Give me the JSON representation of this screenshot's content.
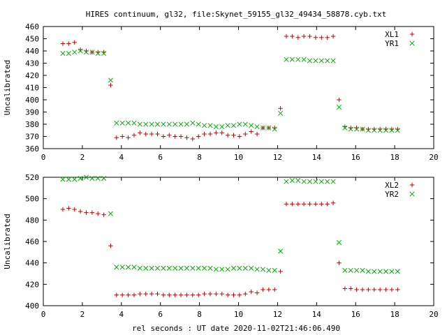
{
  "figure": {
    "title": "HIRES continuum, gl32, file:Skynet_59155_gl32_49434_58878.cyb.txt",
    "xlabel": "rel seconds : UT date 2020-11-02T21:46:06.490"
  },
  "colors": {
    "plus_series": "#cc0000",
    "cross_series": "#00aa00",
    "axes": "#000000"
  },
  "chart_data": [
    {
      "type": "scatter",
      "ylabel": "Uncalibrated",
      "xlim": [
        0,
        20
      ],
      "ylim": [
        360,
        460
      ],
      "xticks": [
        0,
        2,
        4,
        6,
        8,
        10,
        12,
        14,
        16,
        18,
        20
      ],
      "yticks": [
        360,
        370,
        380,
        390,
        400,
        410,
        420,
        430,
        440,
        450,
        460
      ],
      "legend_position": "top-right",
      "grid": false,
      "series": [
        {
          "name": "XL1",
          "marker": "plus",
          "color": "#cc0000",
          "points": [
            [
              1.0,
              446
            ],
            [
              1.3,
              446
            ],
            [
              1.6,
              447
            ],
            [
              1.9,
              441
            ],
            [
              2.2,
              440
            ],
            [
              2.5,
              439
            ],
            [
              2.8,
              439
            ],
            [
              3.1,
              439
            ],
            [
              3.45,
              412
            ],
            [
              3.75,
              369
            ],
            [
              4.05,
              370
            ],
            [
              4.35,
              369
            ],
            [
              4.65,
              371
            ],
            [
              4.95,
              373
            ],
            [
              5.25,
              372
            ],
            [
              5.55,
              372
            ],
            [
              5.85,
              372
            ],
            [
              6.15,
              370
            ],
            [
              6.45,
              371
            ],
            [
              6.75,
              370
            ],
            [
              7.05,
              370
            ],
            [
              7.35,
              369
            ],
            [
              7.65,
              368
            ],
            [
              7.95,
              370
            ],
            [
              8.25,
              372
            ],
            [
              8.55,
              372
            ],
            [
              8.85,
              373
            ],
            [
              9.15,
              373
            ],
            [
              9.45,
              371
            ],
            [
              9.75,
              371
            ],
            [
              10.05,
              370
            ],
            [
              10.35,
              372
            ],
            [
              10.65,
              374
            ],
            [
              10.95,
              372
            ],
            [
              11.25,
              377
            ],
            [
              11.55,
              377
            ],
            [
              11.85,
              377
            ],
            [
              12.15,
              393
            ],
            [
              12.45,
              452
            ],
            [
              12.75,
              452
            ],
            [
              13.05,
              451
            ],
            [
              13.35,
              452
            ],
            [
              13.65,
              452
            ],
            [
              13.95,
              451
            ],
            [
              14.25,
              451
            ],
            [
              14.55,
              451
            ],
            [
              14.85,
              452
            ],
            [
              15.15,
              400
            ],
            [
              15.45,
              378
            ],
            [
              15.75,
              377
            ],
            [
              16.05,
              377
            ],
            [
              16.35,
              376
            ],
            [
              16.65,
              376
            ],
            [
              16.95,
              376
            ],
            [
              17.25,
              376
            ],
            [
              17.55,
              376
            ],
            [
              17.85,
              376
            ],
            [
              18.15,
              376
            ]
          ]
        },
        {
          "name": "YR1",
          "marker": "cross",
          "color": "#00aa00",
          "points": [
            [
              1.0,
              438
            ],
            [
              1.3,
              438
            ],
            [
              1.6,
              439
            ],
            [
              1.9,
              440
            ],
            [
              2.2,
              439
            ],
            [
              2.5,
              439
            ],
            [
              2.8,
              438
            ],
            [
              3.1,
              438
            ],
            [
              3.45,
              416
            ],
            [
              3.75,
              381
            ],
            [
              4.05,
              381
            ],
            [
              4.35,
              381
            ],
            [
              4.65,
              381
            ],
            [
              4.95,
              380
            ],
            [
              5.25,
              380
            ],
            [
              5.55,
              380
            ],
            [
              5.85,
              380
            ],
            [
              6.15,
              380
            ],
            [
              6.45,
              380
            ],
            [
              6.75,
              380
            ],
            [
              7.05,
              380
            ],
            [
              7.35,
              380
            ],
            [
              7.65,
              381
            ],
            [
              7.95,
              380
            ],
            [
              8.25,
              379
            ],
            [
              8.55,
              379
            ],
            [
              8.85,
              378
            ],
            [
              9.15,
              378
            ],
            [
              9.45,
              379
            ],
            [
              9.75,
              379
            ],
            [
              10.05,
              380
            ],
            [
              10.35,
              380
            ],
            [
              10.65,
              379
            ],
            [
              10.95,
              378
            ],
            [
              11.25,
              377
            ],
            [
              11.55,
              377
            ],
            [
              11.85,
              376
            ],
            [
              12.15,
              389
            ],
            [
              12.45,
              433
            ],
            [
              12.75,
              433
            ],
            [
              13.05,
              433
            ],
            [
              13.35,
              433
            ],
            [
              13.65,
              432
            ],
            [
              13.95,
              432
            ],
            [
              14.25,
              432
            ],
            [
              14.55,
              432
            ],
            [
              14.85,
              432
            ],
            [
              15.15,
              394
            ],
            [
              15.45,
              377
            ],
            [
              15.75,
              376
            ],
            [
              16.05,
              376
            ],
            [
              16.35,
              376
            ],
            [
              16.65,
              375
            ],
            [
              16.95,
              375
            ],
            [
              17.25,
              375
            ],
            [
              17.55,
              375
            ],
            [
              17.85,
              375
            ],
            [
              18.15,
              375
            ]
          ]
        }
      ]
    },
    {
      "type": "scatter",
      "ylabel": "Uncalibrated",
      "xlim": [
        0,
        20
      ],
      "ylim": [
        400,
        520
      ],
      "xticks": [
        0,
        2,
        4,
        6,
        8,
        10,
        12,
        14,
        16,
        18,
        20
      ],
      "yticks": [
        400,
        420,
        440,
        460,
        480,
        500,
        520
      ],
      "legend_position": "top-right",
      "grid": false,
      "series": [
        {
          "name": "XL2",
          "marker": "plus",
          "color": "#cc0000",
          "points": [
            [
              1.0,
              490
            ],
            [
              1.3,
              491
            ],
            [
              1.6,
              490
            ],
            [
              1.9,
              488
            ],
            [
              2.2,
              487
            ],
            [
              2.5,
              487
            ],
            [
              2.8,
              486
            ],
            [
              3.1,
              485
            ],
            [
              3.45,
              456
            ],
            [
              3.75,
              410
            ],
            [
              4.05,
              410
            ],
            [
              4.35,
              410
            ],
            [
              4.65,
              410
            ],
            [
              4.95,
              411
            ],
            [
              5.25,
              411
            ],
            [
              5.55,
              411
            ],
            [
              5.85,
              411
            ],
            [
              6.15,
              410
            ],
            [
              6.45,
              410
            ],
            [
              6.75,
              410
            ],
            [
              7.05,
              410
            ],
            [
              7.35,
              410
            ],
            [
              7.65,
              410
            ],
            [
              7.95,
              410
            ],
            [
              8.25,
              411
            ],
            [
              8.55,
              411
            ],
            [
              8.85,
              411
            ],
            [
              9.15,
              411
            ],
            [
              9.45,
              410
            ],
            [
              9.75,
              410
            ],
            [
              10.05,
              410
            ],
            [
              10.35,
              411
            ],
            [
              10.65,
              413
            ],
            [
              10.95,
              412
            ],
            [
              11.25,
              415
            ],
            [
              11.55,
              415
            ],
            [
              11.85,
              415
            ],
            [
              12.15,
              432
            ],
            [
              12.45,
              495
            ],
            [
              12.75,
              495
            ],
            [
              13.05,
              495
            ],
            [
              13.35,
              495
            ],
            [
              13.65,
              495
            ],
            [
              13.95,
              495
            ],
            [
              14.25,
              495
            ],
            [
              14.55,
              495
            ],
            [
              14.85,
              496
            ],
            [
              15.15,
              440
            ],
            [
              15.45,
              416
            ],
            [
              15.75,
              416
            ],
            [
              16.05,
              415
            ],
            [
              16.35,
              415
            ],
            [
              16.65,
              415
            ],
            [
              16.95,
              415
            ],
            [
              17.25,
              415
            ],
            [
              17.55,
              415
            ],
            [
              17.85,
              415
            ],
            [
              18.15,
              415
            ]
          ]
        },
        {
          "name": "YR2",
          "marker": "cross",
          "color": "#00aa00",
          "points": [
            [
              1.0,
              518
            ],
            [
              1.3,
              518
            ],
            [
              1.6,
              518
            ],
            [
              1.9,
              519
            ],
            [
              2.2,
              520
            ],
            [
              2.5,
              519
            ],
            [
              2.8,
              519
            ],
            [
              3.1,
              519
            ],
            [
              3.45,
              486
            ],
            [
              3.75,
              436
            ],
            [
              4.05,
              436
            ],
            [
              4.35,
              436
            ],
            [
              4.65,
              436
            ],
            [
              4.95,
              435
            ],
            [
              5.25,
              435
            ],
            [
              5.55,
              435
            ],
            [
              5.85,
              435
            ],
            [
              6.15,
              435
            ],
            [
              6.45,
              435
            ],
            [
              6.75,
              435
            ],
            [
              7.05,
              435
            ],
            [
              7.35,
              435
            ],
            [
              7.65,
              435
            ],
            [
              7.95,
              435
            ],
            [
              8.25,
              435
            ],
            [
              8.55,
              435
            ],
            [
              8.85,
              434
            ],
            [
              9.15,
              434
            ],
            [
              9.45,
              434
            ],
            [
              9.75,
              435
            ],
            [
              10.05,
              435
            ],
            [
              10.35,
              435
            ],
            [
              10.65,
              435
            ],
            [
              10.95,
              434
            ],
            [
              11.25,
              434
            ],
            [
              11.55,
              433
            ],
            [
              11.85,
              433
            ],
            [
              12.15,
              451
            ],
            [
              12.45,
              516
            ],
            [
              12.75,
              517
            ],
            [
              13.05,
              517
            ],
            [
              13.35,
              516
            ],
            [
              13.65,
              516
            ],
            [
              13.95,
              516
            ],
            [
              14.25,
              516
            ],
            [
              14.55,
              516
            ],
            [
              14.85,
              516
            ],
            [
              15.15,
              459
            ],
            [
              15.45,
              433
            ],
            [
              15.75,
              433
            ],
            [
              16.05,
              433
            ],
            [
              16.35,
              433
            ],
            [
              16.65,
              432
            ],
            [
              16.95,
              432
            ],
            [
              17.25,
              432
            ],
            [
              17.55,
              432
            ],
            [
              17.85,
              432
            ],
            [
              18.15,
              432
            ]
          ]
        }
      ]
    }
  ]
}
